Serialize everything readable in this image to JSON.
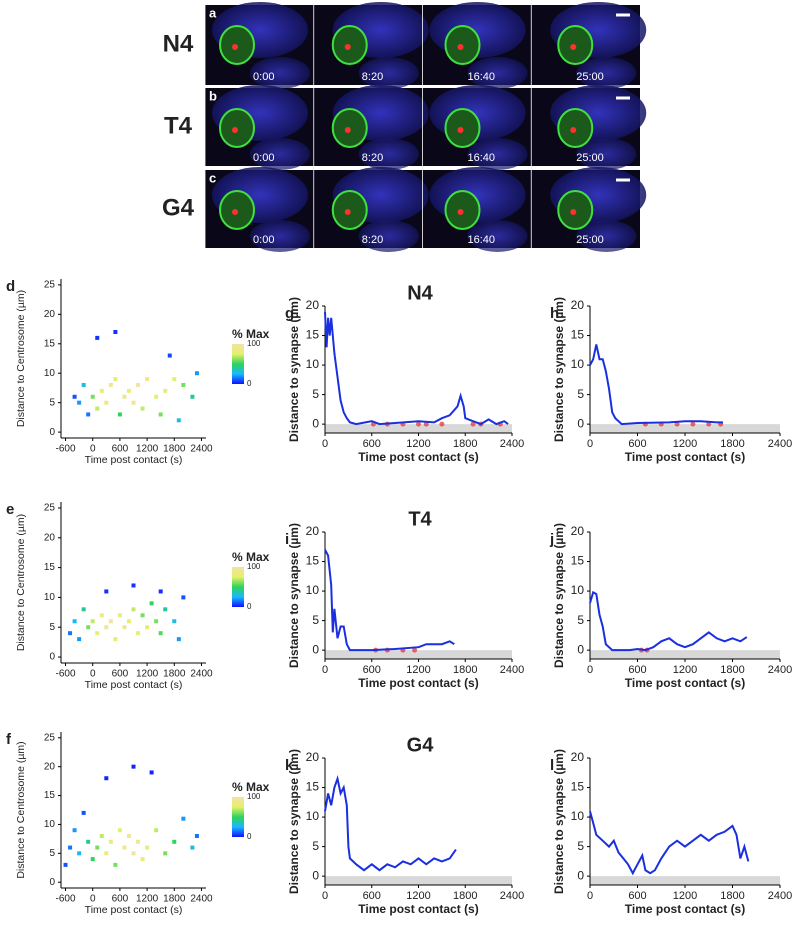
{
  "figure": {
    "panels": [
      {
        "letter": "a",
        "label": "N4",
        "times": [
          "0:00",
          "8:20",
          "16:40",
          "25:00"
        ]
      },
      {
        "letter": "b",
        "label": "T4",
        "times": [
          "0:00",
          "8:20",
          "16:40",
          "25:00"
        ]
      },
      {
        "letter": "c",
        "label": "G4",
        "times": [
          "0:00",
          "8:20",
          "16:40",
          "25:00"
        ]
      }
    ]
  },
  "chart_data": [
    {
      "type": "scatter",
      "panel": "d",
      "x_label": "Time post contact (s)",
      "y_label": "Distance to Centrosome (µm)",
      "x": [
        -300,
        -200,
        -100,
        0,
        100,
        200,
        300,
        400,
        500,
        600,
        700,
        800,
        900,
        1000,
        1200,
        1400,
        1600,
        1800,
        2000,
        2200,
        2300,
        100,
        500,
        1700,
        -400,
        1100,
        1500,
        1900
      ],
      "values": [
        5,
        8,
        3,
        6,
        4,
        7,
        5,
        8,
        9,
        3,
        6,
        7,
        5,
        8,
        9,
        6,
        7,
        9,
        8,
        6,
        10,
        16,
        17,
        13,
        6,
        4,
        3,
        2
      ],
      "density": [
        20,
        30,
        15,
        60,
        70,
        80,
        85,
        90,
        80,
        50,
        90,
        85,
        95,
        100,
        90,
        80,
        85,
        80,
        60,
        40,
        20,
        5,
        5,
        8,
        10,
        70,
        60,
        30
      ],
      "colormap": [
        "#1010ff",
        "#18b8ff",
        "#2ed35a",
        "#e4f06a",
        "#f3e2a5"
      ],
      "colorbar": {
        "label": "% Max",
        "ticks": [
          0,
          100
        ]
      },
      "xlim": [
        -700,
        2500
      ],
      "ylim": [
        -1,
        26
      ],
      "xticks": [
        -600,
        0,
        600,
        1200,
        1800,
        2400
      ],
      "yticks": [
        0,
        5,
        10,
        15,
        20,
        25
      ]
    },
    {
      "type": "line",
      "panel": "g",
      "title": "N4",
      "x_label": "Time post contact (s)",
      "y_label": "Distance to synapse (µm)",
      "color": "#1a2fe0",
      "x": [
        0,
        20,
        40,
        60,
        80,
        120,
        160,
        200,
        240,
        280,
        320,
        400,
        600,
        700,
        900,
        1200,
        1400,
        1500,
        1600,
        1700,
        1740,
        1780,
        1800,
        1900,
        2000,
        2100,
        2200,
        2300,
        2350
      ],
      "values": [
        19,
        13,
        18,
        15,
        18,
        12,
        8,
        4,
        2,
        1,
        0.3,
        0,
        0.5,
        0,
        0.2,
        0.5,
        0.3,
        1,
        1.5,
        3,
        4.8,
        3,
        1,
        0.5,
        0,
        0.8,
        0,
        0.5,
        0
      ],
      "markers": {
        "color": "#e84040",
        "x": [
          620,
          800,
          1000,
          1200,
          1300,
          1500,
          1900,
          2000,
          2250
        ],
        "values": [
          0,
          0,
          0,
          0,
          0,
          0,
          0,
          0,
          0
        ]
      },
      "xlim": [
        0,
        2400
      ],
      "ylim": [
        -1.5,
        20
      ],
      "xticks": [
        0,
        600,
        1200,
        1800,
        2400
      ],
      "yticks": [
        0,
        5,
        10,
        15,
        20
      ]
    },
    {
      "type": "line",
      "panel": "h",
      "x_label": "Time post contact (s)",
      "y_label": "Distance to synapse (µm)",
      "color": "#1a2fe0",
      "x": [
        0,
        40,
        80,
        120,
        160,
        200,
        240,
        280,
        320,
        400,
        600,
        1000,
        1200,
        1400,
        1600,
        1680
      ],
      "values": [
        10,
        11,
        13.5,
        11,
        11,
        9,
        6,
        2,
        1,
        0,
        0.2,
        0.3,
        0.5,
        0.5,
        0.3,
        0.3
      ],
      "markers": {
        "color": "#e84040",
        "x": [
          700,
          900,
          1100,
          1300,
          1500,
          1650
        ],
        "values": [
          0,
          0,
          0,
          0,
          0,
          0
        ]
      },
      "xlim": [
        0,
        2400
      ],
      "ylim": [
        -1.5,
        20
      ],
      "xticks": [
        0,
        600,
        1200,
        1800,
        2400
      ],
      "yticks": [
        0,
        5,
        10,
        15,
        20
      ]
    },
    {
      "type": "scatter",
      "panel": "e",
      "x_label": "Time post contact (s)",
      "y_label": "Distance to Centrosome (µm)",
      "x": [
        -500,
        -400,
        -300,
        -200,
        -100,
        0,
        100,
        200,
        300,
        400,
        500,
        600,
        700,
        800,
        900,
        1000,
        1100,
        1200,
        1300,
        1400,
        1500,
        1600,
        1800,
        1900,
        2000,
        300,
        900,
        1500
      ],
      "values": [
        4,
        6,
        3,
        8,
        5,
        6,
        4,
        7,
        5,
        6,
        3,
        7,
        5,
        6,
        8,
        4,
        7,
        5,
        9,
        6,
        4,
        8,
        6,
        3,
        10,
        11,
        12,
        11
      ],
      "density": [
        15,
        25,
        20,
        40,
        60,
        70,
        80,
        90,
        95,
        100,
        80,
        85,
        90,
        80,
        70,
        80,
        60,
        75,
        50,
        60,
        55,
        40,
        30,
        20,
        10,
        5,
        5,
        5
      ],
      "colormap": [
        "#1010ff",
        "#18b8ff",
        "#2ed35a",
        "#e4f06a",
        "#f3e2a5"
      ],
      "colorbar": {
        "label": "% Max",
        "ticks": [
          0,
          100
        ]
      },
      "xlim": [
        -700,
        2500
      ],
      "ylim": [
        -1,
        26
      ],
      "xticks": [
        -600,
        0,
        600,
        1200,
        1800,
        2400
      ],
      "yticks": [
        0,
        5,
        10,
        15,
        20,
        25
      ]
    },
    {
      "type": "line",
      "panel": "i",
      "title": "T4",
      "x_label": "Time post contact (s)",
      "y_label": "Distance to synapse (µm)",
      "color": "#1a2fe0",
      "x": [
        0,
        40,
        80,
        100,
        120,
        160,
        200,
        240,
        280,
        320,
        600,
        900,
        1200,
        1300,
        1500,
        1600,
        1660
      ],
      "values": [
        17,
        16,
        11,
        3,
        7,
        2,
        4,
        4,
        1,
        0,
        0,
        0.2,
        0.5,
        1,
        1,
        1.5,
        1
      ],
      "markers": {
        "color": "#e84040",
        "x": [
          650,
          800,
          1000,
          1150
        ],
        "values": [
          0,
          0,
          0,
          0
        ]
      },
      "xlim": [
        0,
        2400
      ],
      "ylim": [
        -1.5,
        20
      ],
      "xticks": [
        0,
        600,
        1200,
        1800,
        2400
      ],
      "yticks": [
        0,
        5,
        10,
        15,
        20
      ]
    },
    {
      "type": "line",
      "panel": "j",
      "x_label": "Time post contact (s)",
      "y_label": "Distance to synapse (µm)",
      "color": "#1a2fe0",
      "x": [
        0,
        40,
        80,
        120,
        160,
        200,
        280,
        500,
        600,
        700,
        800,
        900,
        1000,
        1100,
        1200,
        1300,
        1400,
        1500,
        1600,
        1700,
        1800,
        1900,
        1980
      ],
      "values": [
        8,
        9.8,
        9.5,
        6,
        4,
        1,
        0,
        0,
        0.2,
        0,
        0.5,
        1.5,
        2,
        1,
        0.5,
        1,
        2,
        3,
        2,
        1.5,
        2,
        1.5,
        2.2
      ],
      "markers": {
        "color": "#e84040",
        "x": [
          650,
          720
        ],
        "values": [
          0,
          0
        ]
      },
      "xlim": [
        0,
        2400
      ],
      "ylim": [
        -1.5,
        20
      ],
      "xticks": [
        0,
        600,
        1200,
        1800,
        2400
      ],
      "yticks": [
        0,
        5,
        10,
        15,
        20
      ]
    },
    {
      "type": "scatter",
      "panel": "f",
      "x_label": "Time post contact (s)",
      "y_label": "Distance to Centrosome (µm)",
      "x": [
        -600,
        -500,
        -400,
        -300,
        -200,
        -100,
        0,
        100,
        200,
        300,
        400,
        500,
        600,
        700,
        800,
        900,
        1000,
        1100,
        1200,
        1400,
        1600,
        1800,
        2000,
        2200,
        2300,
        300,
        900,
        1300
      ],
      "values": [
        3,
        6,
        9,
        5,
        12,
        7,
        4,
        6,
        8,
        5,
        7,
        3,
        9,
        6,
        8,
        5,
        7,
        4,
        6,
        9,
        5,
        7,
        11,
        6,
        8,
        18,
        20,
        19
      ],
      "density": [
        10,
        15,
        20,
        25,
        10,
        40,
        50,
        60,
        70,
        80,
        85,
        60,
        75,
        90,
        95,
        100,
        90,
        80,
        85,
        70,
        60,
        50,
        20,
        30,
        15,
        3,
        3,
        3
      ],
      "colormap": [
        "#1010ff",
        "#18b8ff",
        "#2ed35a",
        "#e4f06a",
        "#f3e2a5"
      ],
      "colorbar": {
        "label": "% Max",
        "ticks": [
          0,
          100
        ]
      },
      "xlim": [
        -700,
        2500
      ],
      "ylim": [
        -1,
        26
      ],
      "xticks": [
        -600,
        0,
        600,
        1200,
        1800,
        2400
      ],
      "yticks": [
        0,
        5,
        10,
        15,
        20,
        25
      ]
    },
    {
      "type": "line",
      "panel": "k",
      "title": "G4",
      "x_label": "Time post contact (s)",
      "y_label": "Distance to synapse (µm)",
      "color": "#1a2fe0",
      "x": [
        0,
        40,
        80,
        120,
        160,
        200,
        240,
        280,
        300,
        320,
        400,
        500,
        600,
        700,
        800,
        900,
        1000,
        1100,
        1200,
        1300,
        1400,
        1500,
        1600,
        1680
      ],
      "values": [
        11,
        14,
        12,
        15,
        16.5,
        14,
        15,
        12,
        5,
        3,
        2,
        1,
        2,
        1,
        2,
        1.5,
        2.5,
        2,
        3,
        2,
        3,
        2.5,
        3,
        4.5
      ],
      "xlim": [
        0,
        2400
      ],
      "ylim": [
        -1.5,
        20
      ],
      "xticks": [
        0,
        600,
        1200,
        1800,
        2400
      ],
      "yticks": [
        0,
        5,
        10,
        15,
        20
      ]
    },
    {
      "type": "line",
      "panel": "l",
      "x_label": "Time post contact (s)",
      "y_label": "Distance to synapse (µm)",
      "color": "#1a2fe0",
      "x": [
        0,
        40,
        80,
        160,
        240,
        300,
        360,
        420,
        480,
        540,
        600,
        660,
        700,
        760,
        820,
        900,
        1000,
        1100,
        1200,
        1300,
        1400,
        1500,
        1600,
        1700,
        1800,
        1850,
        1900,
        1950,
        2000
      ],
      "values": [
        11,
        9,
        7,
        6,
        5,
        6,
        4,
        3,
        2,
        0.5,
        2,
        3.5,
        1,
        0.5,
        1,
        3,
        5,
        6,
        5,
        6,
        7,
        6,
        7,
        7.5,
        8.5,
        7,
        3,
        5,
        2.5
      ],
      "xlim": [
        0,
        2400
      ],
      "ylim": [
        -1.5,
        20
      ],
      "xticks": [
        0,
        600,
        1200,
        1800,
        2400
      ],
      "yticks": [
        0,
        5,
        10,
        15,
        20
      ]
    }
  ]
}
